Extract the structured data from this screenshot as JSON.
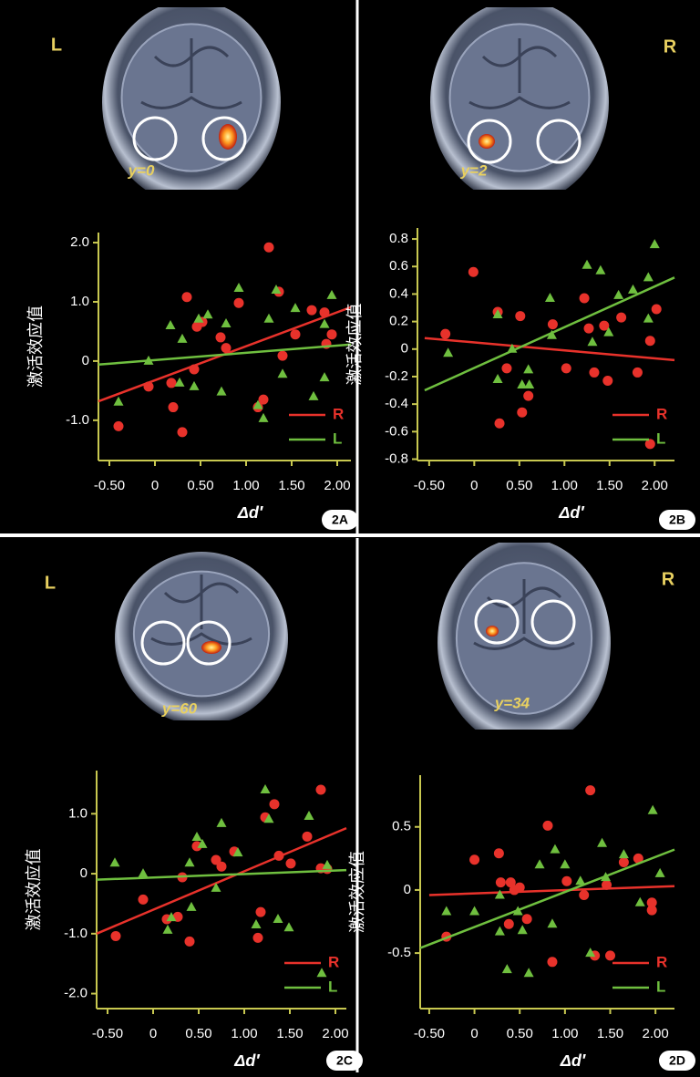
{
  "chart_data": [
    {
      "type": "scatter",
      "panel": "2A",
      "side_label": "L",
      "slice_label": "y=0",
      "xlabel": "Δd′",
      "ylabel": "激活效应值",
      "legend": "lower right",
      "xlim": [
        -0.62,
        2.15
      ],
      "ylim": [
        -1.68,
        2.17
      ],
      "xticks": [
        {
          "value": -0.5,
          "label": "-0.50"
        },
        0,
        {
          "value": 0.5,
          "label": "0.50"
        },
        {
          "value": 1,
          "label": "1.00"
        },
        {
          "value": 1.5,
          "label": "1.50"
        },
        {
          "value": 2,
          "label": "2.00"
        }
      ],
      "yticks": [
        {
          "value": 2,
          "label": "2.0"
        },
        {
          "value": 1,
          "label": "1.0"
        },
        0,
        {
          "value": -1,
          "label": "-1.0"
        }
      ],
      "series": [
        {
          "name": "R",
          "color": "#e8322b",
          "marker": "circle",
          "x": [
            -0.4,
            -0.07,
            0.18,
            0.2,
            0.3,
            0.35,
            0.43,
            0.46,
            0.52,
            0.72,
            0.78,
            0.92,
            1.13,
            1.19,
            1.25,
            1.36,
            1.4,
            1.54,
            1.72,
            1.86,
            1.88,
            1.94
          ],
          "values": [
            -1.1,
            -0.43,
            -0.37,
            -0.78,
            -1.2,
            1.08,
            -0.14,
            0.58,
            0.66,
            0.4,
            0.22,
            0.98,
            -0.78,
            -0.65,
            1.92,
            1.17,
            0.09,
            0.45,
            0.86,
            0.82,
            0.29,
            0.45
          ],
          "trend_x": [
            -0.62,
            2.15
          ],
          "trend_y": [
            -0.68,
            0.91
          ]
        },
        {
          "name": "L",
          "color": "#6fbf3f",
          "marker": "triangle",
          "x": [
            -0.4,
            -0.07,
            0.17,
            0.27,
            0.3,
            0.43,
            0.48,
            0.58,
            0.73,
            0.78,
            0.92,
            1.13,
            1.19,
            1.25,
            1.33,
            1.4,
            1.54,
            1.74,
            1.86,
            1.86,
            1.94
          ],
          "values": [
            -0.69,
            0,
            0.6,
            -0.37,
            0.37,
            -0.43,
            0.71,
            0.78,
            -0.52,
            0.63,
            1.23,
            -0.75,
            -0.97,
            0.71,
            1.2,
            -0.22,
            0.89,
            -0.6,
            -0.28,
            0.62,
            1.11
          ],
          "trend_x": [
            -0.62,
            2.15
          ],
          "trend_y": [
            -0.06,
            0.28
          ]
        }
      ]
    },
    {
      "type": "scatter",
      "panel": "2B",
      "side_label": "R",
      "slice_label": "y=2",
      "xlabel": "Δd′",
      "ylabel": "激活效应值",
      "legend": "lower right",
      "xlim": [
        -0.63,
        2.22
      ],
      "ylim": [
        -0.81,
        0.88
      ],
      "xticks": [
        {
          "value": -0.5,
          "label": "-0.50"
        },
        0,
        {
          "value": 0.5,
          "label": "0.50"
        },
        {
          "value": 1,
          "label": "1.00"
        },
        {
          "value": 1.5,
          "label": "1.50"
        },
        {
          "value": 2,
          "label": "2.00"
        }
      ],
      "yticks": [
        0.8,
        0.6,
        0.4,
        0.2,
        0,
        -0.2,
        -0.4,
        -0.6,
        -0.8
      ],
      "series": [
        {
          "name": "R",
          "color": "#e8322b",
          "marker": "circle",
          "x": [
            -0.32,
            -0.01,
            0.26,
            0.28,
            0.36,
            0.51,
            0.53,
            0.6,
            0.87,
            1.02,
            1.22,
            1.27,
            1.33,
            1.44,
            1.48,
            1.63,
            1.81,
            1.95,
            1.95,
            2.02
          ],
          "values": [
            0.11,
            0.56,
            0.27,
            -0.54,
            -0.14,
            0.24,
            -0.46,
            -0.34,
            0.18,
            -0.14,
            0.37,
            0.15,
            -0.17,
            0.17,
            -0.23,
            0.23,
            -0.17,
            0.06,
            -0.69,
            0.29
          ],
          "trend_x": [
            -0.55,
            2.22
          ],
          "trend_y": [
            0.08,
            -0.08
          ]
        },
        {
          "name": "L",
          "color": "#6fbf3f",
          "marker": "triangle",
          "x": [
            -0.29,
            0.26,
            0.26,
            0.42,
            0.53,
            0.61,
            0.84,
            0.86,
            1.25,
            1.31,
            1.4,
            1.49,
            1.6,
            1.76,
            1.93,
            2.0,
            1.93,
            0.6
          ],
          "values": [
            -0.03,
            0.25,
            -0.22,
            0,
            -0.26,
            -0.26,
            0.37,
            0.1,
            0.61,
            0.05,
            0.57,
            0.12,
            0.39,
            0.43,
            0.52,
            0.76,
            0.22,
            -0.15
          ],
          "trend_x": [
            -0.55,
            2.22
          ],
          "trend_y": [
            -0.3,
            0.52
          ]
        }
      ]
    },
    {
      "type": "scatter",
      "panel": "2C",
      "side_label": "L",
      "slice_label": "y=60",
      "xlabel": "Δd′",
      "ylabel": "激活效应值",
      "legend": "lower right",
      "xlim": [
        -0.62,
        2.12
      ],
      "ylim": [
        -2.25,
        1.72
      ],
      "xticks": [
        {
          "value": -0.5,
          "label": "-0.50"
        },
        0,
        {
          "value": 0.5,
          "label": "0.50"
        },
        {
          "value": 1,
          "label": "1.00"
        },
        {
          "value": 1.5,
          "label": "1.50"
        },
        {
          "value": 2,
          "label": "2.00"
        }
      ],
      "yticks": [
        {
          "value": 1,
          "label": "1.0"
        },
        0,
        {
          "value": -1,
          "label": "-1.0"
        },
        {
          "value": -2,
          "label": "-2.0"
        }
      ],
      "series": [
        {
          "name": "R",
          "color": "#e8322b",
          "marker": "circle",
          "x": [
            -0.41,
            -0.11,
            0.15,
            0.27,
            0.32,
            0.4,
            0.48,
            0.69,
            0.75,
            0.89,
            1.15,
            1.18,
            1.23,
            1.33,
            1.38,
            1.51,
            1.69,
            1.84,
            1.84,
            1.91
          ],
          "values": [
            -1.04,
            -0.43,
            -0.76,
            -0.72,
            -0.06,
            -1.13,
            0.46,
            0.23,
            0.12,
            0.37,
            -1.07,
            -0.64,
            0.94,
            1.16,
            0.3,
            0.17,
            0.62,
            1.4,
            0.09,
            0.08
          ],
          "trend_x": [
            -0.62,
            2.12
          ],
          "trend_y": [
            -1.0,
            0.76
          ]
        },
        {
          "name": "L",
          "color": "#6fbf3f",
          "marker": "triangle",
          "x": [
            -0.42,
            -0.11,
            0.16,
            0.2,
            0.4,
            0.42,
            0.48,
            0.54,
            0.69,
            0.75,
            0.93,
            1.13,
            1.23,
            1.27,
            1.37,
            1.49,
            1.71,
            1.85,
            1.91
          ],
          "values": [
            0.18,
            0,
            -0.94,
            -0.73,
            0.18,
            -0.56,
            0.61,
            0.49,
            -0.24,
            0.84,
            0.35,
            -0.85,
            1.4,
            0.91,
            -0.76,
            -0.9,
            0.96,
            -1.66,
            0.14
          ],
          "trend_x": [
            -0.62,
            2.12
          ],
          "trend_y": [
            -0.1,
            0.06
          ]
        }
      ]
    },
    {
      "type": "scatter",
      "panel": "2D",
      "side_label": "R",
      "slice_label": "y=34",
      "xlabel": "Δd′",
      "ylabel": "激活效应值",
      "legend": "lower right",
      "xlim": [
        -0.6,
        2.21
      ],
      "ylim": [
        -0.94,
        0.91
      ],
      "xticks": [
        {
          "value": -0.5,
          "label": "-0.50"
        },
        0,
        {
          "value": 0.5,
          "label": "0.50"
        },
        {
          "value": 1,
          "label": "1.00"
        },
        {
          "value": 1.5,
          "label": "1.50"
        },
        {
          "value": 2,
          "label": "2.00"
        }
      ],
      "yticks": [
        0.5,
        0,
        -0.5
      ],
      "series": [
        {
          "name": "R",
          "color": "#e8322b",
          "marker": "circle",
          "x": [
            -0.31,
            0,
            0.27,
            0.29,
            0.4,
            0.44,
            0.5,
            0.38,
            0.58,
            0.81,
            0.86,
            1.02,
            1.21,
            1.28,
            1.33,
            1.5,
            1.46,
            1.65,
            1.81,
            1.96,
            1.96
          ],
          "values": [
            -0.37,
            0.24,
            0.29,
            0.06,
            0.06,
            0,
            0.02,
            -0.27,
            -0.23,
            0.51,
            -0.57,
            0.07,
            -0.04,
            0.79,
            -0.52,
            -0.52,
            0.04,
            0.22,
            0.25,
            -0.1,
            -0.16
          ],
          "trend_x": [
            -0.5,
            2.21
          ],
          "trend_y": [
            -0.04,
            0.03
          ]
        },
        {
          "name": "L",
          "color": "#6fbf3f",
          "marker": "triangle",
          "x": [
            -0.31,
            0,
            0.28,
            0.28,
            0.36,
            0.48,
            0.53,
            0.6,
            0.72,
            0.86,
            0.89,
            1.0,
            1.17,
            1.28,
            1.41,
            1.45,
            1.65,
            1.83,
            1.97,
            2.05
          ],
          "values": [
            -0.17,
            -0.17,
            -0.04,
            -0.33,
            -0.63,
            -0.17,
            -0.32,
            -0.66,
            0.2,
            -0.27,
            0.32,
            0.2,
            0.07,
            -0.5,
            0.37,
            0.1,
            0.28,
            -0.1,
            0.63,
            0.13
          ],
          "trend_x": [
            -0.6,
            2.21
          ],
          "trend_y": [
            -0.46,
            0.32
          ]
        }
      ]
    }
  ]
}
